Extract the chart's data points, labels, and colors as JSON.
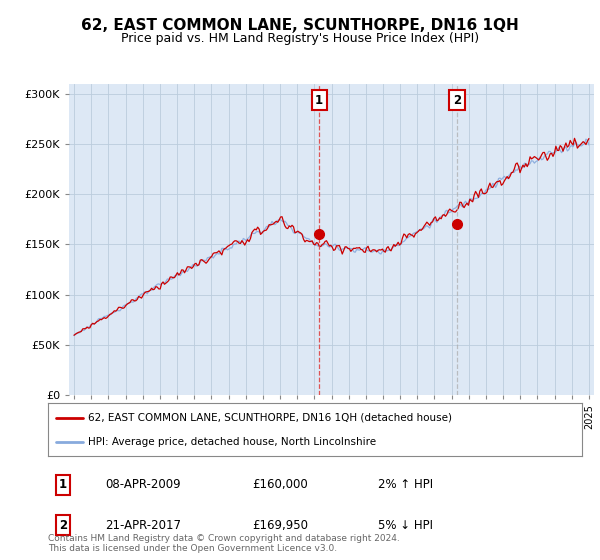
{
  "title": "62, EAST COMMON LANE, SCUNTHORPE, DN16 1QH",
  "subtitle": "Price paid vs. HM Land Registry's House Price Index (HPI)",
  "ylabel_ticks": [
    "£0",
    "£50K",
    "£100K",
    "£150K",
    "£200K",
    "£250K",
    "£300K"
  ],
  "ytick_values": [
    0,
    50000,
    100000,
    150000,
    200000,
    250000,
    300000
  ],
  "ylim": [
    0,
    310000
  ],
  "xlim_start": 1994.7,
  "xlim_end": 2025.3,
  "line1_color": "#cc0000",
  "line2_color": "#88aadd",
  "vline1_color": "#dd4444",
  "vline2_color": "#aaaaaa",
  "shade_color": "#dde8f5",
  "legend_line1": "62, EAST COMMON LANE, SCUNTHORPE, DN16 1QH (detached house)",
  "legend_line2": "HPI: Average price, detached house, North Lincolnshire",
  "marker1_x": 2009.28,
  "marker1_y": 160000,
  "marker1_label": "1",
  "marker1_date": "08-APR-2009",
  "marker1_price": "£160,000",
  "marker1_hpi": "2% ↑ HPI",
  "marker2_x": 2017.31,
  "marker2_y": 169950,
  "marker2_label": "2",
  "marker2_date": "21-APR-2017",
  "marker2_price": "£169,950",
  "marker2_hpi": "5% ↓ HPI",
  "footer": "Contains HM Land Registry data © Crown copyright and database right 2024.\nThis data is licensed under the Open Government Licence v3.0.",
  "bg_color": "#dde8f5",
  "grid_color": "#bbccdd",
  "title_fontsize": 11,
  "subtitle_fontsize": 9
}
